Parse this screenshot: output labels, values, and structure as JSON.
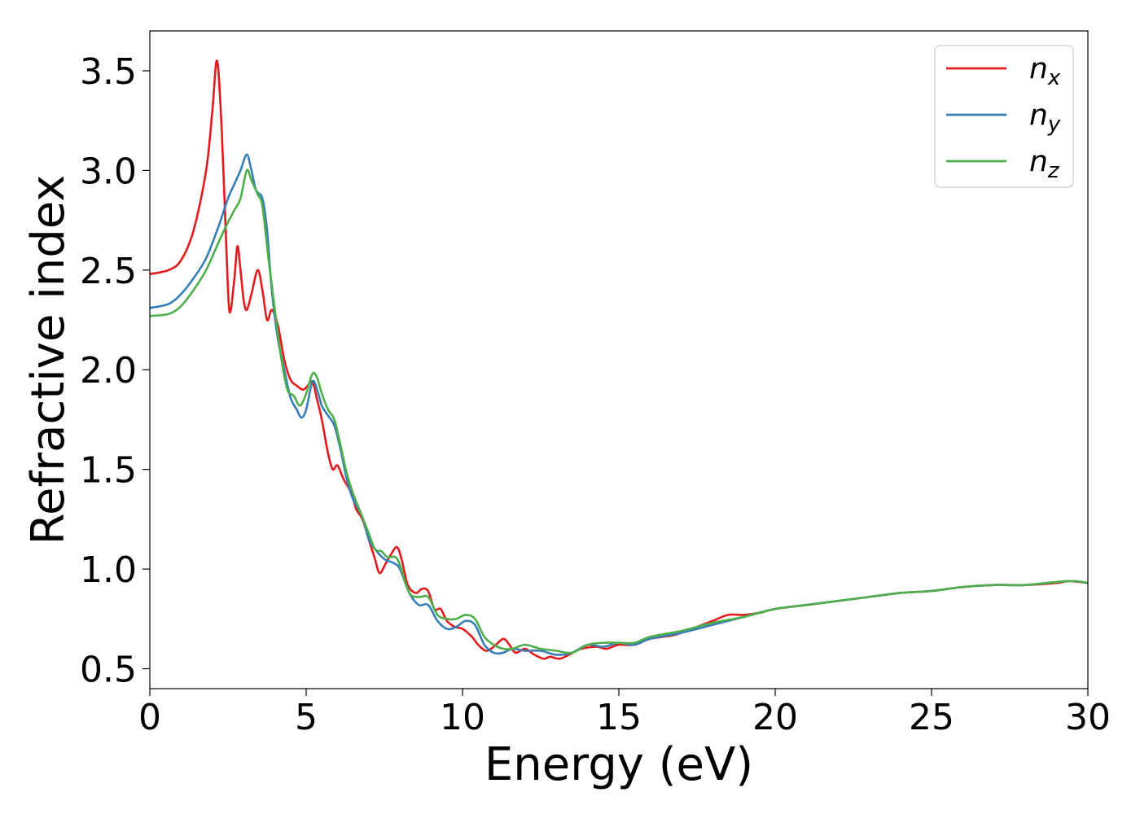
{
  "chart_data": {
    "type": "line",
    "xlabel": "Energy (eV)",
    "ylabel": "Refractive index",
    "xlim": [
      0,
      30
    ],
    "ylim": [
      0.4,
      3.7
    ],
    "xticks": [
      "0",
      "5",
      "10",
      "15",
      "20",
      "25",
      "30"
    ],
    "yticks": [
      "0.5",
      "1.0",
      "1.5",
      "2.0",
      "2.5",
      "3.0",
      "3.5"
    ],
    "grid": false,
    "legend_position": "top-right",
    "series": [
      {
        "name": "n",
        "subscript": "x",
        "color": "#e41a1c",
        "points": [
          [
            0,
            2.48
          ],
          [
            0.6,
            2.5
          ],
          [
            1.0,
            2.55
          ],
          [
            1.4,
            2.7
          ],
          [
            1.8,
            3.0
          ],
          [
            2.0,
            3.3
          ],
          [
            2.15,
            3.55
          ],
          [
            2.3,
            3.2
          ],
          [
            2.45,
            2.6
          ],
          [
            2.55,
            2.29
          ],
          [
            2.7,
            2.45
          ],
          [
            2.8,
            2.62
          ],
          [
            2.9,
            2.5
          ],
          [
            3.0,
            2.35
          ],
          [
            3.1,
            2.3
          ],
          [
            3.25,
            2.38
          ],
          [
            3.45,
            2.5
          ],
          [
            3.6,
            2.4
          ],
          [
            3.75,
            2.25
          ],
          [
            3.9,
            2.3
          ],
          [
            4.1,
            2.22
          ],
          [
            4.3,
            2.05
          ],
          [
            4.5,
            1.95
          ],
          [
            4.7,
            1.92
          ],
          [
            4.9,
            1.9
          ],
          [
            5.05,
            1.92
          ],
          [
            5.2,
            1.94
          ],
          [
            5.35,
            1.85
          ],
          [
            5.5,
            1.75
          ],
          [
            5.7,
            1.58
          ],
          [
            5.85,
            1.5
          ],
          [
            6.0,
            1.52
          ],
          [
            6.2,
            1.45
          ],
          [
            6.45,
            1.38
          ],
          [
            6.6,
            1.3
          ],
          [
            6.8,
            1.25
          ],
          [
            7.0,
            1.15
          ],
          [
            7.2,
            1.05
          ],
          [
            7.35,
            0.98
          ],
          [
            7.55,
            1.03
          ],
          [
            7.7,
            1.07
          ],
          [
            7.9,
            1.11
          ],
          [
            8.05,
            1.05
          ],
          [
            8.25,
            0.92
          ],
          [
            8.5,
            0.88
          ],
          [
            8.7,
            0.9
          ],
          [
            8.9,
            0.89
          ],
          [
            9.1,
            0.8
          ],
          [
            9.3,
            0.8
          ],
          [
            9.5,
            0.74
          ],
          [
            9.75,
            0.71
          ],
          [
            10.0,
            0.7
          ],
          [
            10.3,
            0.66
          ],
          [
            10.5,
            0.62
          ],
          [
            10.75,
            0.59
          ],
          [
            11.0,
            0.61
          ],
          [
            11.3,
            0.65
          ],
          [
            11.5,
            0.62
          ],
          [
            11.7,
            0.58
          ],
          [
            12.0,
            0.6
          ],
          [
            12.3,
            0.57
          ],
          [
            12.6,
            0.55
          ],
          [
            12.8,
            0.56
          ],
          [
            13.1,
            0.55
          ],
          [
            13.4,
            0.57
          ],
          [
            13.8,
            0.6
          ],
          [
            14.3,
            0.61
          ],
          [
            14.6,
            0.6
          ],
          [
            15.0,
            0.62
          ],
          [
            15.5,
            0.62
          ],
          [
            16.0,
            0.65
          ],
          [
            16.8,
            0.67
          ],
          [
            17.5,
            0.71
          ],
          [
            18.0,
            0.74
          ],
          [
            18.5,
            0.77
          ],
          [
            19.0,
            0.77
          ],
          [
            19.5,
            0.78
          ],
          [
            20.0,
            0.8
          ],
          [
            21.0,
            0.82
          ],
          [
            22.0,
            0.84
          ],
          [
            23.0,
            0.86
          ],
          [
            24.0,
            0.88
          ],
          [
            25.0,
            0.89
          ],
          [
            26.0,
            0.91
          ],
          [
            27.0,
            0.92
          ],
          [
            28.0,
            0.92
          ],
          [
            29.0,
            0.93
          ],
          [
            29.4,
            0.94
          ],
          [
            30.0,
            0.93
          ]
        ]
      },
      {
        "name": "n",
        "subscript": "y",
        "color": "#377eb8",
        "points": [
          [
            0,
            2.31
          ],
          [
            0.6,
            2.33
          ],
          [
            1.0,
            2.38
          ],
          [
            1.4,
            2.46
          ],
          [
            1.8,
            2.56
          ],
          [
            2.2,
            2.72
          ],
          [
            2.5,
            2.86
          ],
          [
            2.7,
            2.93
          ],
          [
            2.9,
            3.0
          ],
          [
            3.1,
            3.08
          ],
          [
            3.25,
            3.0
          ],
          [
            3.4,
            2.9
          ],
          [
            3.6,
            2.86
          ],
          [
            3.75,
            2.7
          ],
          [
            3.9,
            2.4
          ],
          [
            4.1,
            2.15
          ],
          [
            4.3,
            2.0
          ],
          [
            4.5,
            1.86
          ],
          [
            4.7,
            1.8
          ],
          [
            4.85,
            1.76
          ],
          [
            5.0,
            1.8
          ],
          [
            5.2,
            1.94
          ],
          [
            5.35,
            1.9
          ],
          [
            5.5,
            1.82
          ],
          [
            5.7,
            1.77
          ],
          [
            5.9,
            1.72
          ],
          [
            6.1,
            1.6
          ],
          [
            6.3,
            1.45
          ],
          [
            6.5,
            1.35
          ],
          [
            6.8,
            1.26
          ],
          [
            7.0,
            1.15
          ],
          [
            7.2,
            1.1
          ],
          [
            7.5,
            1.05
          ],
          [
            7.8,
            1.03
          ],
          [
            8.0,
            1.0
          ],
          [
            8.3,
            0.88
          ],
          [
            8.6,
            0.82
          ],
          [
            8.9,
            0.82
          ],
          [
            9.2,
            0.74
          ],
          [
            9.5,
            0.7
          ],
          [
            9.8,
            0.71
          ],
          [
            10.1,
            0.74
          ],
          [
            10.4,
            0.72
          ],
          [
            10.7,
            0.62
          ],
          [
            11.0,
            0.58
          ],
          [
            11.3,
            0.58
          ],
          [
            11.6,
            0.6
          ],
          [
            12.0,
            0.59
          ],
          [
            12.5,
            0.59
          ],
          [
            13.0,
            0.57
          ],
          [
            13.5,
            0.58
          ],
          [
            14.0,
            0.62
          ],
          [
            14.5,
            0.61
          ],
          [
            15.0,
            0.63
          ],
          [
            15.5,
            0.62
          ],
          [
            16.0,
            0.65
          ],
          [
            17.0,
            0.68
          ],
          [
            18.0,
            0.72
          ],
          [
            19.0,
            0.76
          ],
          [
            20.0,
            0.8
          ],
          [
            21.0,
            0.82
          ],
          [
            22.0,
            0.84
          ],
          [
            23.0,
            0.86
          ],
          [
            24.0,
            0.88
          ],
          [
            25.0,
            0.89
          ],
          [
            26.0,
            0.91
          ],
          [
            27.0,
            0.92
          ],
          [
            28.0,
            0.92
          ],
          [
            29.4,
            0.94
          ],
          [
            30.0,
            0.93
          ]
        ]
      },
      {
        "name": "n",
        "subscript": "z",
        "color": "#4daf4a",
        "points": [
          [
            0,
            2.27
          ],
          [
            0.6,
            2.28
          ],
          [
            1.0,
            2.32
          ],
          [
            1.4,
            2.4
          ],
          [
            1.8,
            2.5
          ],
          [
            2.2,
            2.64
          ],
          [
            2.5,
            2.74
          ],
          [
            2.7,
            2.8
          ],
          [
            2.9,
            2.86
          ],
          [
            3.1,
            3.0
          ],
          [
            3.25,
            2.95
          ],
          [
            3.45,
            2.88
          ],
          [
            3.6,
            2.82
          ],
          [
            3.8,
            2.55
          ],
          [
            4.0,
            2.3
          ],
          [
            4.2,
            2.06
          ],
          [
            4.4,
            1.9
          ],
          [
            4.6,
            1.87
          ],
          [
            4.8,
            1.82
          ],
          [
            5.0,
            1.88
          ],
          [
            5.2,
            1.98
          ],
          [
            5.35,
            1.96
          ],
          [
            5.5,
            1.88
          ],
          [
            5.7,
            1.8
          ],
          [
            5.9,
            1.75
          ],
          [
            6.1,
            1.62
          ],
          [
            6.3,
            1.48
          ],
          [
            6.5,
            1.38
          ],
          [
            6.8,
            1.26
          ],
          [
            7.0,
            1.18
          ],
          [
            7.2,
            1.1
          ],
          [
            7.4,
            1.09
          ],
          [
            7.6,
            1.06
          ],
          [
            7.85,
            1.06
          ],
          [
            8.0,
            1.02
          ],
          [
            8.3,
            0.88
          ],
          [
            8.6,
            0.86
          ],
          [
            8.9,
            0.86
          ],
          [
            9.2,
            0.77
          ],
          [
            9.5,
            0.75
          ],
          [
            9.8,
            0.75
          ],
          [
            10.1,
            0.77
          ],
          [
            10.4,
            0.75
          ],
          [
            10.7,
            0.66
          ],
          [
            11.0,
            0.62
          ],
          [
            11.3,
            0.6
          ],
          [
            11.6,
            0.6
          ],
          [
            12.0,
            0.62
          ],
          [
            12.5,
            0.6
          ],
          [
            13.0,
            0.59
          ],
          [
            13.5,
            0.58
          ],
          [
            14.0,
            0.62
          ],
          [
            14.5,
            0.63
          ],
          [
            15.0,
            0.63
          ],
          [
            15.5,
            0.63
          ],
          [
            16.0,
            0.66
          ],
          [
            17.0,
            0.69
          ],
          [
            18.0,
            0.73
          ],
          [
            19.0,
            0.76
          ],
          [
            20.0,
            0.8
          ],
          [
            21.0,
            0.82
          ],
          [
            22.0,
            0.84
          ],
          [
            23.0,
            0.86
          ],
          [
            24.0,
            0.88
          ],
          [
            25.0,
            0.89
          ],
          [
            26.0,
            0.91
          ],
          [
            27.0,
            0.92
          ],
          [
            28.0,
            0.92
          ],
          [
            29.4,
            0.94
          ],
          [
            30.0,
            0.93
          ]
        ]
      }
    ]
  }
}
